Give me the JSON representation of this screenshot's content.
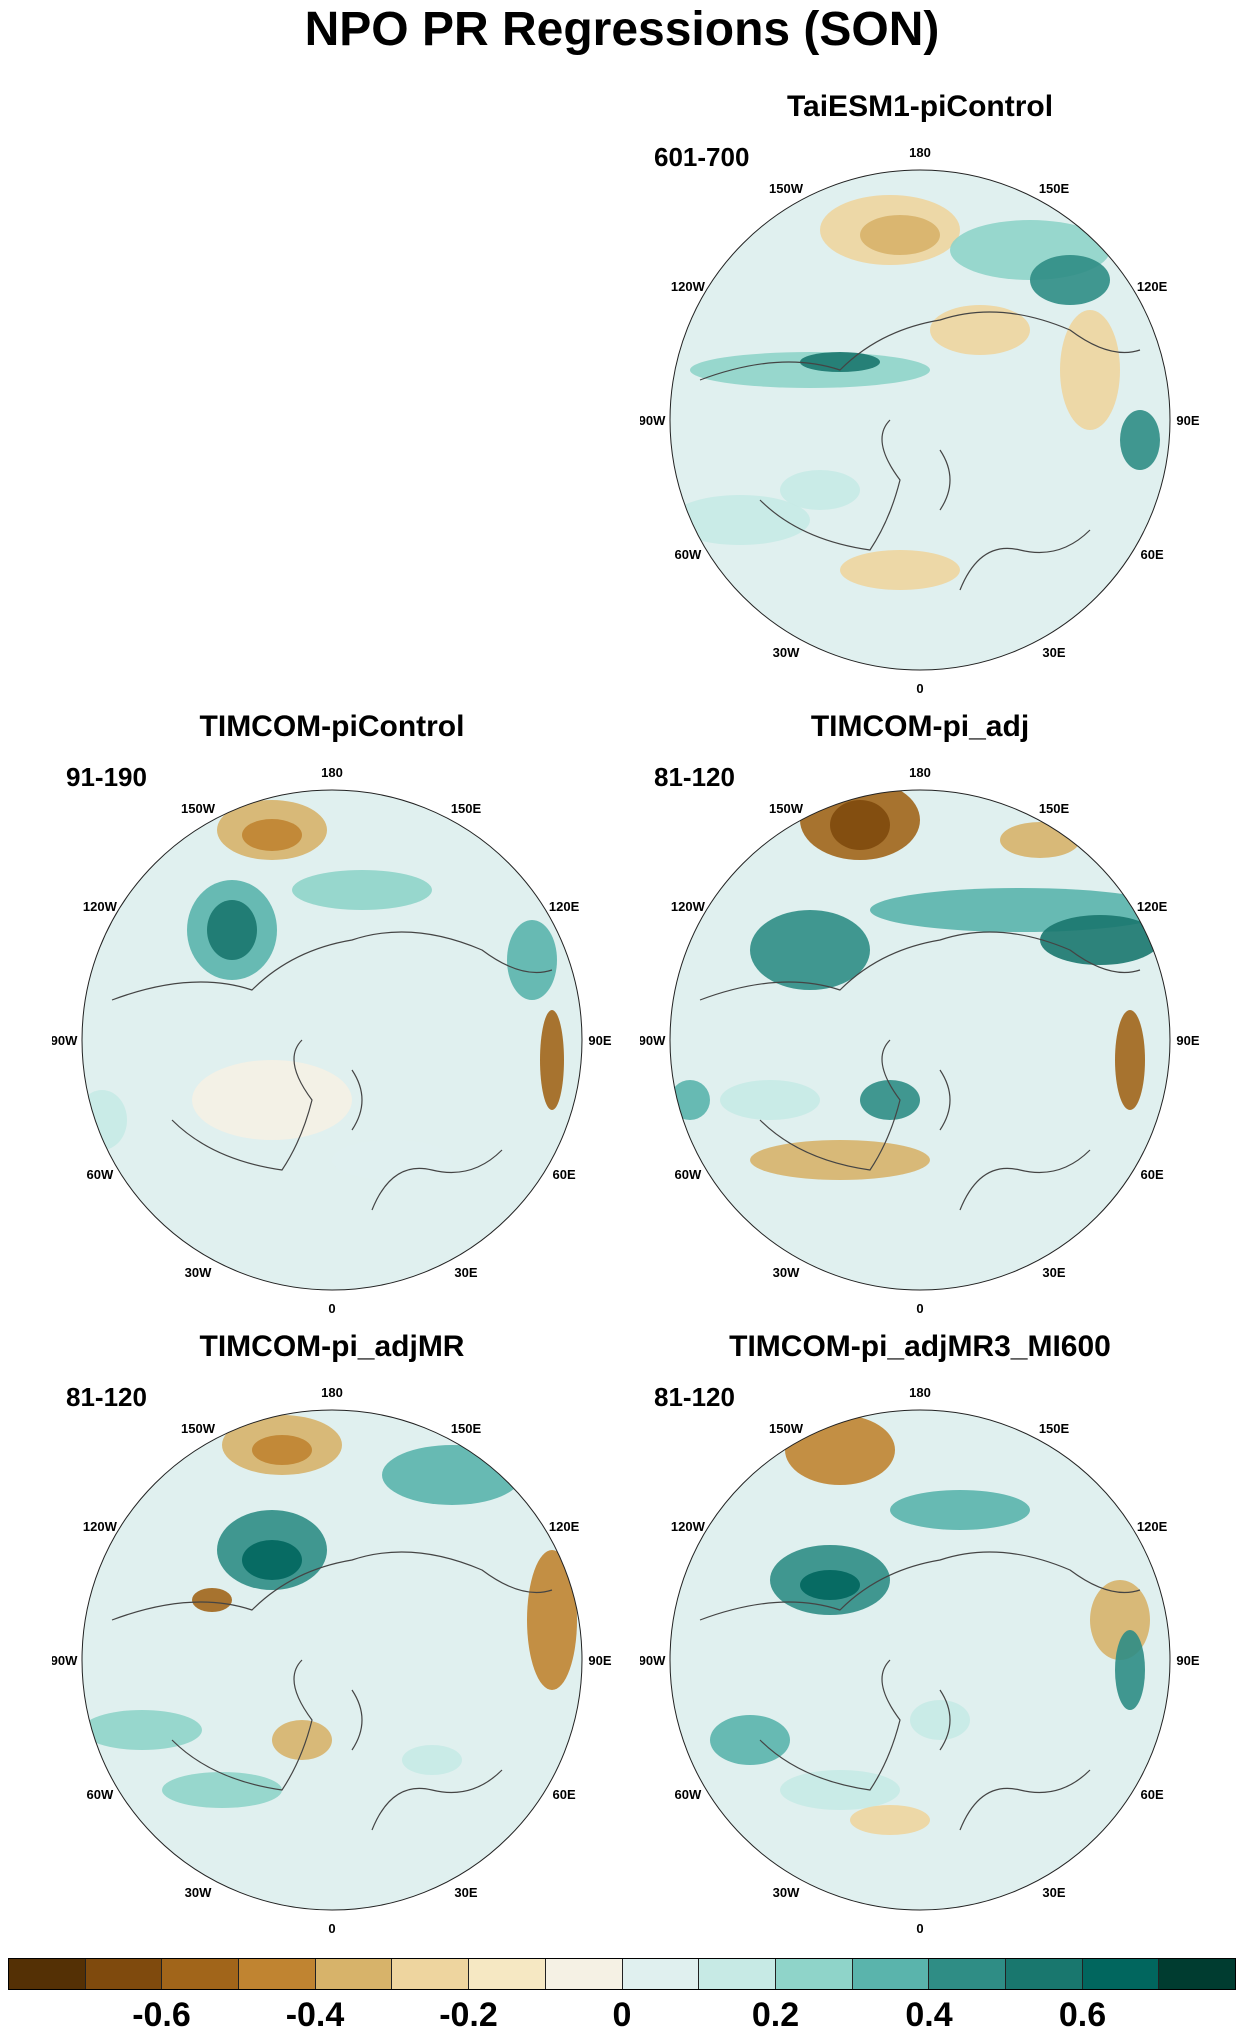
{
  "title": "NPO PR Regressions (SON)",
  "lon_labels": [
    "180",
    "150E",
    "120E",
    "90E",
    "60E",
    "30E",
    "0",
    "30W",
    "60W",
    "90W",
    "120W",
    "150W"
  ],
  "panels": [
    {
      "id": "taiesm",
      "title": "TaiESM1-piControl",
      "years": "601-700"
    },
    {
      "id": "timcom-pictrl",
      "title": "TIMCOM-piControl",
      "years": "91-190"
    },
    {
      "id": "timcom-adj",
      "title": "TIMCOM-pi_adj",
      "years": "81-120"
    },
    {
      "id": "timcom-adjmr",
      "title": "TIMCOM-pi_adjMR",
      "years": "81-120"
    },
    {
      "id": "timcom-adjmr3",
      "title": "TIMCOM-pi_adjMR3_MI600",
      "years": "81-120"
    }
  ],
  "colorbar": {
    "colors": [
      "#543005",
      "#7f4a0d",
      "#a1651a",
      "#c08431",
      "#d7b36a",
      "#eed59f",
      "#f6e8c3",
      "#f5f1e4",
      "#e0f0ef",
      "#c7eae5",
      "#8fd4c9",
      "#5ab4ac",
      "#2f8d85",
      "#19776e",
      "#01665e",
      "#003c30"
    ],
    "tick_labels": [
      "-0.6",
      "-0.4",
      "-0.2",
      "0",
      "0.2",
      "0.4",
      "0.6"
    ]
  }
}
